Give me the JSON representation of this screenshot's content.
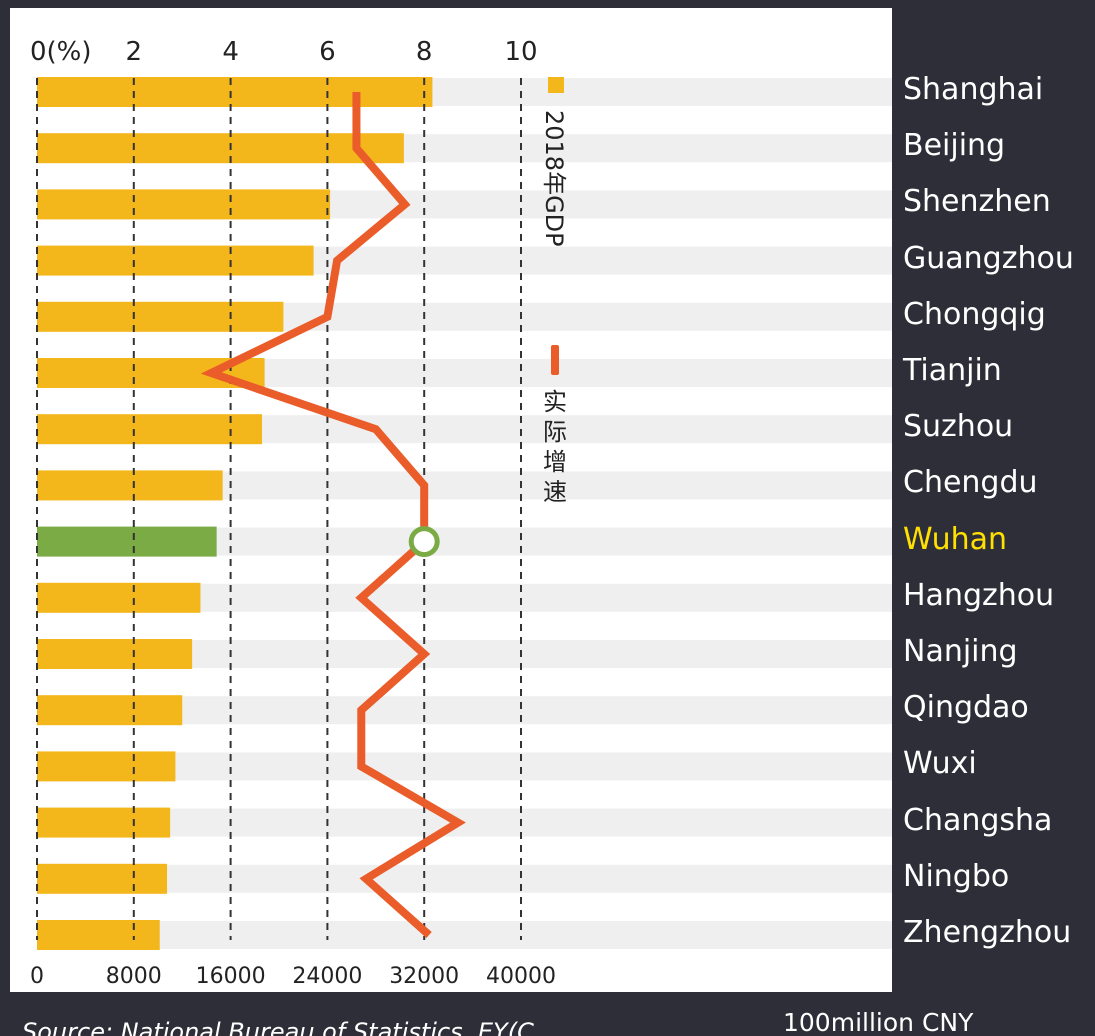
{
  "chart_data": {
    "type": "bar",
    "categories": [
      "Shanghai",
      "Beijing",
      "Shenzhen",
      "Guangzhou",
      "Chongqig",
      "Tianjin",
      "Suzhou",
      "Chengdu",
      "Wuhan",
      "Hangzhou",
      "Nanjing",
      "Qingdao",
      "Wuxi",
      "Changsha",
      "Ningbo",
      "Zhengzhou"
    ],
    "highlight_category": "Wuhan",
    "series": [
      {
        "name": "2018年GDP",
        "kind": "bar",
        "axis": "bottom",
        "values": [
          32680,
          30320,
          24222,
          22859,
          20363,
          18810,
          18597,
          15343,
          14847,
          13509,
          12820,
          12001,
          11439,
          11003,
          10746,
          10143
        ]
      },
      {
        "name": "实际增速",
        "kind": "line",
        "axis": "top",
        "values": [
          6.6,
          6.6,
          7.6,
          6.2,
          6.0,
          3.6,
          7.0,
          8.0,
          8.0,
          6.7,
          8.0,
          6.7,
          6.7,
          8.7,
          6.8,
          8.1
        ]
      }
    ],
    "top_axis": {
      "ticks": [
        "0(%)",
        "2",
        "4",
        "6",
        "8",
        "10"
      ],
      "range": [
        0,
        10
      ]
    },
    "bottom_axis": {
      "ticks": [
        "0",
        "8000",
        "16000",
        "24000",
        "32000",
        "40000"
      ],
      "range": [
        0,
        40000
      ],
      "unit_label": "100million CNY"
    },
    "grid": true,
    "legend": {
      "placement": "right",
      "orientation": "vertical",
      "items": [
        "2018年GDP",
        "实际增速"
      ]
    },
    "colors": {
      "page_background": "#2e2e38",
      "plot_background": "#ffffff",
      "row_band": "#efefef",
      "bar": "#f3b71c",
      "highlight_bar": "#7bab44",
      "line": "#ea5c29",
      "marker_stroke": "#7bab44",
      "label_text": "#ffffff",
      "highlight_text": "#ffe000"
    }
  },
  "source_text": "Source: National Bureau of Statistics, EY(C..."
}
